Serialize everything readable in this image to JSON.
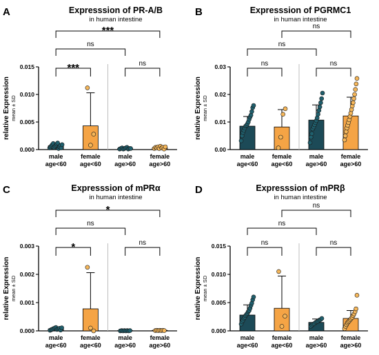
{
  "colors": {
    "male": "#1c4a57",
    "female": "#f5a445",
    "male_dot": "#1f5f6d",
    "female_dot": "#f6b75a",
    "axis": "#000000",
    "divider": "#bdbdbd"
  },
  "chart_data": [
    {
      "type": "bar",
      "panel_letter": "A",
      "title": "Expresssion of PR-A/B",
      "subtitle": "in human intestine",
      "ylabel": "relative Expression",
      "ylabel_sub": "mean ± SD",
      "ylim": [
        0,
        0.015
      ],
      "yticks": [
        0,
        0.005,
        0.01,
        0.015
      ],
      "ytick_labels": [
        "0.000",
        "0.005",
        "0.010",
        "0.015"
      ],
      "categories": [
        [
          "male",
          "age<60"
        ],
        [
          "female",
          "age<60"
        ],
        [
          "male",
          "age>60"
        ],
        [
          "female",
          "age>60"
        ]
      ],
      "groups": [
        "male",
        "female",
        "male",
        "female"
      ],
      "values": [
        0.0007,
        0.0043,
        0.0002,
        0.0003
      ],
      "sd": [
        0.0004,
        0.006,
        0.0001,
        0.0002
      ],
      "points": [
        [
          0.0003,
          0.0005,
          0.0007,
          0.0009,
          0.0011,
          0.0004,
          0.0006,
          0.0008,
          0.001,
          0.0012,
          0.0002,
          0.0005,
          0.0007,
          0.0003,
          0.0009
        ],
        [
          0.0112,
          0.0008,
          0.0028
        ],
        [
          0.0001,
          0.0002,
          0.0003,
          0.0001,
          0.0002,
          0.0003,
          0.0004,
          0.0001,
          0.0002,
          0.0002
        ],
        [
          0.0002,
          0.0004,
          0.0003,
          0.0005,
          0.0002,
          0.0006,
          0.0003,
          0.0004,
          0.0001,
          0.0005
        ]
      ],
      "comparisons": [
        {
          "from": 0,
          "to": 3,
          "label": "***",
          "stars": true
        },
        {
          "from": 0,
          "to": 2,
          "label": "ns",
          "stars": false
        },
        {
          "from": 0,
          "to": 1,
          "label": "***",
          "stars": true
        },
        {
          "from": 2,
          "to": 3,
          "label": "ns",
          "stars": false
        }
      ]
    },
    {
      "type": "bar",
      "panel_letter": "B",
      "title": "Expresssion of PGRMC1",
      "subtitle": "in human intestine",
      "ylabel": "relative Expression",
      "ylabel_sub": "mean ± SD",
      "ylim": [
        0,
        0.03
      ],
      "yticks": [
        0,
        0.01,
        0.02,
        0.03
      ],
      "ytick_labels": [
        "0.00",
        "0.01",
        "0.02",
        "0.03"
      ],
      "categories": [
        [
          "male",
          "age<60"
        ],
        [
          "female",
          "age<60"
        ],
        [
          "male",
          "age>60"
        ],
        [
          "female",
          "age>60"
        ]
      ],
      "groups": [
        "male",
        "female",
        "male",
        "female"
      ],
      "values": [
        0.0085,
        0.0082,
        0.0107,
        0.0122
      ],
      "sd": [
        0.0035,
        0.0063,
        0.0055,
        0.0068
      ],
      "points": [
        [
          0.0032,
          0.005,
          0.0062,
          0.007,
          0.0078,
          0.0085,
          0.0088,
          0.0093,
          0.01,
          0.011,
          0.0118,
          0.0125,
          0.0138,
          0.0152,
          0.016
        ],
        [
          0.0006,
          0.0045,
          0.0128,
          0.0148
        ],
        [
          0.0025,
          0.0045,
          0.0058,
          0.0075,
          0.0082,
          0.009,
          0.0098,
          0.0105,
          0.0115,
          0.0128,
          0.0142,
          0.0155,
          0.017,
          0.0185,
          0.0205
        ],
        [
          0.0035,
          0.005,
          0.0065,
          0.0078,
          0.0088,
          0.0098,
          0.0108,
          0.012,
          0.0132,
          0.0145,
          0.0158,
          0.017,
          0.0185,
          0.02,
          0.0218,
          0.0238,
          0.0258
        ]
      ],
      "comparisons": [
        {
          "from": 1,
          "to": 3,
          "label": "ns",
          "stars": false
        },
        {
          "from": 0,
          "to": 2,
          "label": "ns",
          "stars": false
        },
        {
          "from": 0,
          "to": 1,
          "label": "ns",
          "stars": false
        },
        {
          "from": 2,
          "to": 3,
          "label": "ns",
          "stars": false
        }
      ]
    },
    {
      "type": "bar",
      "panel_letter": "C",
      "title": "Expresssion of mPRα",
      "subtitle": "in human intestine",
      "ylabel": "relative Expression",
      "ylabel_sub": "mean ± SD",
      "ylim": [
        0,
        0.003
      ],
      "yticks": [
        0,
        0.001,
        0.002,
        0.003
      ],
      "ytick_labels": [
        "0.000",
        "0.001",
        "0.002",
        "0.003"
      ],
      "categories": [
        [
          "male",
          "age<60"
        ],
        [
          "female",
          "age<60"
        ],
        [
          "male",
          "age>60"
        ],
        [
          "female",
          "age>60"
        ]
      ],
      "groups": [
        "male",
        "female",
        "male",
        "female"
      ],
      "values": [
        7e-05,
        0.00078,
        1e-05,
        2e-05
      ],
      "sd": [
        4e-05,
        0.00128,
        1e-05,
        1e-05
      ],
      "points": [
        [
          2e-05,
          4e-05,
          6e-05,
          8e-05,
          0.0001,
          0.00012,
          5e-05,
          7e-05,
          9e-05,
          3e-05,
          0.00011
        ],
        [
          0.00225,
          0.0001,
          0.0
        ],
        [
          0.0,
          1e-05,
          0.0,
          1e-05,
          0.0,
          1e-05,
          0.0,
          1e-05
        ],
        [
          1e-05,
          2e-05,
          1e-05,
          2e-05,
          1e-05,
          2e-05,
          1e-05
        ]
      ],
      "comparisons": [
        {
          "from": 0,
          "to": 3,
          "label": "*",
          "stars": true
        },
        {
          "from": 0,
          "to": 2,
          "label": "ns",
          "stars": false
        },
        {
          "from": 0,
          "to": 1,
          "label": "*",
          "stars": true
        },
        {
          "from": 2,
          "to": 3,
          "label": "ns",
          "stars": false
        }
      ]
    },
    {
      "type": "bar",
      "panel_letter": "D",
      "title": "Expresssion of mPRβ",
      "subtitle": "in human intestine",
      "ylabel": "relative Expression",
      "ylabel_sub": "mean ± SD",
      "ylim": [
        0,
        0.015
      ],
      "yticks": [
        0,
        0.005,
        0.01,
        0.015
      ],
      "ytick_labels": [
        "0.000",
        "0.005",
        "0.010",
        "0.015"
      ],
      "categories": [
        [
          "male",
          "age<60"
        ],
        [
          "female",
          "age<60"
        ],
        [
          "male",
          "age>60"
        ],
        [
          "female",
          "age>60"
        ]
      ],
      "groups": [
        "male",
        "female",
        "male",
        "female"
      ],
      "values": [
        0.0028,
        0.004,
        0.0015,
        0.0022
      ],
      "sd": [
        0.0018,
        0.0057,
        0.0006,
        0.0014
      ],
      "points": [
        [
          0.0012,
          0.0016,
          0.0019,
          0.0022,
          0.0024,
          0.0027,
          0.0029,
          0.0031,
          0.0034,
          0.0036,
          0.004,
          0.0045,
          0.0049,
          0.0055,
          0.006
        ],
        [
          0.0105,
          0.0008,
          0.0026
        ],
        [
          0.0008,
          0.001,
          0.0012,
          0.0013,
          0.0015,
          0.0016,
          0.0017,
          0.0019,
          0.002,
          0.0022
        ],
        [
          0.0004,
          0.0008,
          0.0011,
          0.0014,
          0.0016,
          0.0018,
          0.002,
          0.0022,
          0.0024,
          0.0027,
          0.003,
          0.0034,
          0.0039,
          0.0063
        ]
      ],
      "comparisons": [
        {
          "from": 1,
          "to": 3,
          "label": "ns",
          "stars": false
        },
        {
          "from": 0,
          "to": 2,
          "label": "ns",
          "stars": false
        },
        {
          "from": 0,
          "to": 1,
          "label": "ns",
          "stars": false
        },
        {
          "from": 2,
          "to": 3,
          "label": "ns",
          "stars": false
        }
      ]
    }
  ]
}
